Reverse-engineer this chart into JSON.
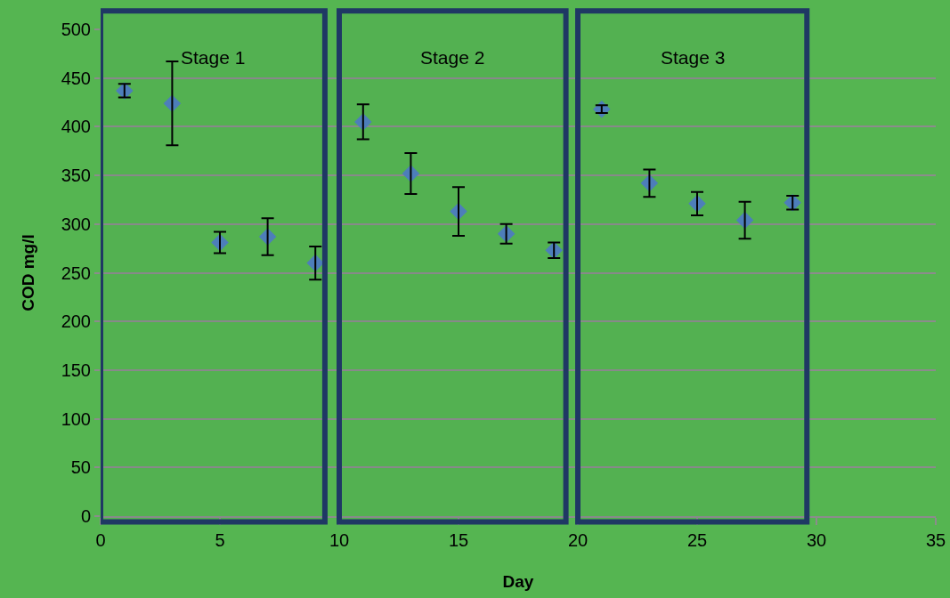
{
  "chart_data": {
    "type": "scatter",
    "xlabel": "Day",
    "ylabel": "COD mg/l",
    "x": [
      1,
      3,
      5,
      7,
      9,
      11,
      13,
      15,
      17,
      19,
      21,
      23,
      25,
      27,
      29
    ],
    "series": [
      {
        "color": "#4f81bd",
        "values": [
          437,
          424,
          281,
          287,
          260,
          405,
          352,
          313,
          290,
          273,
          418,
          342,
          321,
          304,
          322
        ],
        "errors": [
          7,
          43,
          11,
          19,
          17,
          18,
          21,
          25,
          10,
          8,
          4,
          14,
          12,
          19,
          7
        ]
      }
    ],
    "xlim": [
      0,
      35
    ],
    "xticks": [
      0,
      5,
      10,
      15,
      20,
      25,
      30,
      35
    ],
    "ylim": [
      0,
      500
    ],
    "yticks": [
      0,
      50,
      100,
      150,
      200,
      250,
      300,
      350,
      400,
      450,
      500
    ],
    "bands": [
      {
        "axis": "x",
        "from": 0,
        "to": 9.4,
        "label": "Stage 1",
        "color": "#1f3864"
      },
      {
        "axis": "x",
        "from": 10,
        "to": 19.5,
        "label": "Stage 2",
        "color": "#1f3864"
      },
      {
        "axis": "x",
        "from": 20,
        "to": 29.6,
        "label": "Stage 3",
        "color": "#1f3864"
      }
    ],
    "grid": "y",
    "marker": "diamond"
  }
}
